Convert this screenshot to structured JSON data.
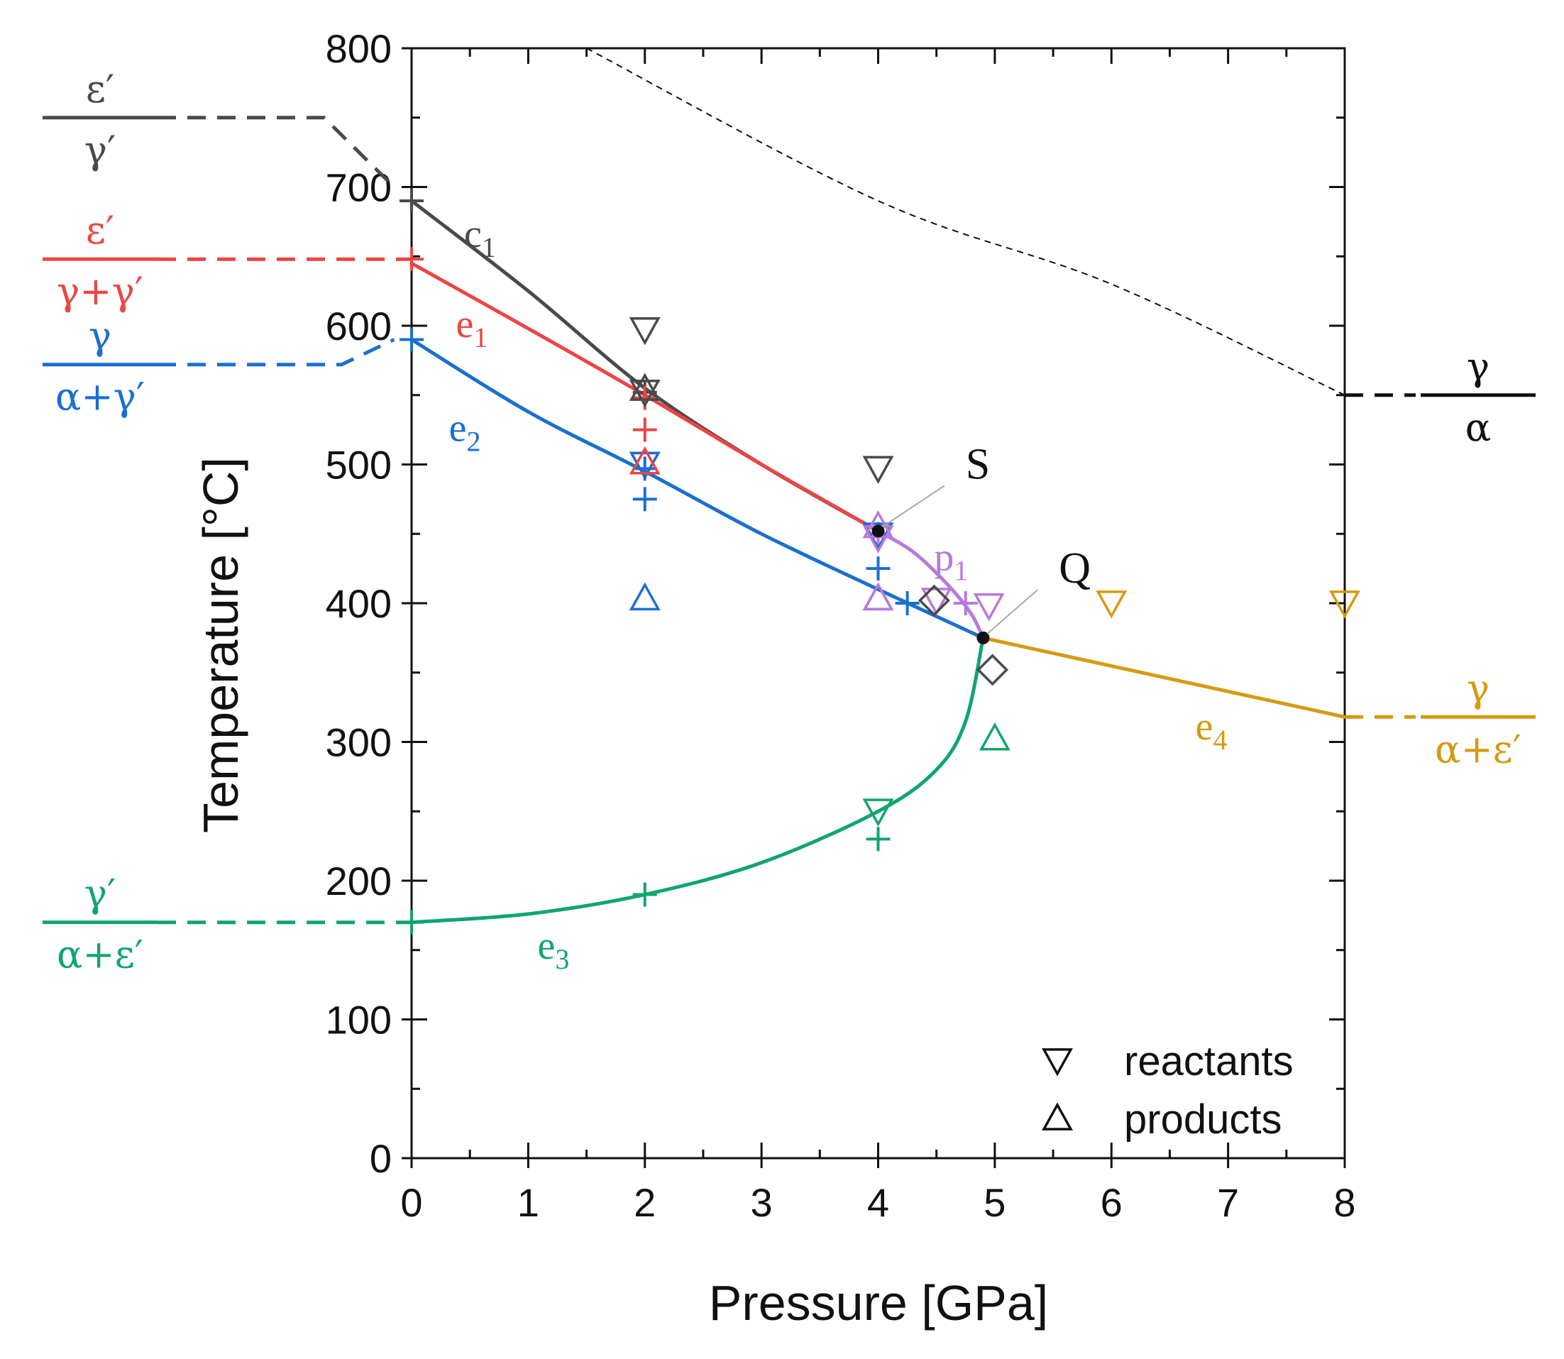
{
  "chart_data": {
    "type": "line",
    "xlabel": "Pressure [GPa]",
    "ylabel": "Temperature [°C]",
    "xlim": [
      0,
      8
    ],
    "ylim": [
      0,
      800
    ],
    "x_ticks": [
      "0",
      "1",
      "2",
      "3",
      "4",
      "5",
      "6",
      "7",
      "8"
    ],
    "y_ticks": [
      "0",
      "100",
      "200",
      "300",
      "400",
      "500",
      "600",
      "700",
      "800"
    ],
    "colors": {
      "c1": "#4a4a4a",
      "e1": "#ee4444",
      "e2": "#1a6fd0",
      "e3": "#10a56e",
      "e4": "#d49a12",
      "p1": "#b57bdc",
      "black": "#111111"
    },
    "series": [
      {
        "name": "c",
        "sub": "1",
        "color": "#4a4a4a",
        "x": [
          0,
          1,
          2,
          3,
          4
        ],
        "y": [
          690,
          625,
          555,
          500,
          452
        ]
      },
      {
        "name": "e",
        "sub": "1",
        "color": "#ee4444",
        "x": [
          0,
          1,
          2,
          3,
          4
        ],
        "y": [
          645,
          598,
          550,
          500,
          452
        ]
      },
      {
        "name": "e",
        "sub": "2",
        "color": "#1a6fd0",
        "x": [
          0,
          1,
          2,
          3,
          4,
          4.9
        ],
        "y": [
          590,
          538,
          495,
          450,
          410,
          375
        ]
      },
      {
        "name": "e",
        "sub": "3",
        "color": "#10a56e",
        "x": [
          0,
          1,
          2,
          3,
          4,
          4.5,
          4.75,
          4.9
        ],
        "y": [
          170,
          176,
          190,
          213,
          250,
          280,
          315,
          375
        ]
      },
      {
        "name": "e",
        "sub": "4",
        "color": "#d49a12",
        "x": [
          4.9,
          8
        ],
        "y": [
          375,
          318
        ]
      },
      {
        "name": "p",
        "sub": "1",
        "color": "#b57bdc",
        "x": [
          4,
          4.3,
          4.6,
          4.8,
          4.9
        ],
        "y": [
          452,
          437,
          413,
          392,
          375
        ]
      }
    ],
    "upper_dashed_line": {
      "x": [
        1.5,
        4,
        6,
        8
      ],
      "y": [
        800,
        690,
        630,
        550
      ]
    },
    "left_connectors": [
      {
        "color": "#4a4a4a",
        "x": [
          -2.1,
          -0.75,
          -0.15
        ],
        "y": [
          750,
          750,
          700
        ]
      },
      {
        "color": "#ee4444",
        "x": [
          -2.1,
          0
        ],
        "y": [
          648,
          648
        ]
      },
      {
        "color": "#1a6fd0",
        "x": [
          -2.1,
          -0.6,
          -0.15
        ],
        "y": [
          572,
          572,
          590
        ]
      },
      {
        "color": "#10a56e",
        "x": [
          -2.1,
          0
        ],
        "y": [
          170,
          170
        ]
      }
    ],
    "right_connectors": [
      {
        "color": "#111111",
        "x": [
          8,
          10.9
        ],
        "y": [
          550,
          550
        ]
      },
      {
        "color": "#d49a12",
        "x": [
          8,
          10.9
        ],
        "y": [
          318,
          318
        ]
      }
    ],
    "left_labels": [
      {
        "top": "ε′",
        "bottom": "γ′",
        "y": 750,
        "color": "#4a4a4a"
      },
      {
        "top": "ε′",
        "bottom": "γ+γ′",
        "y": 648,
        "color": "#ee4444"
      },
      {
        "top": "γ",
        "bottom": "α+γ′",
        "y": 572,
        "color": "#1a6fd0"
      },
      {
        "top": "γ′",
        "bottom": "α+ε′",
        "y": 170,
        "color": "#10a56e"
      }
    ],
    "right_labels": [
      {
        "top": "γ",
        "bottom": "α",
        "y": 550,
        "color": "#111111"
      },
      {
        "top": "γ",
        "bottom": "α+ε′",
        "y": 318,
        "color": "#d49a12"
      }
    ],
    "curve_labels": [
      {
        "name": "c",
        "sub": "1",
        "x": 0.45,
        "y": 665,
        "color": "#4a4a4a"
      },
      {
        "name": "e",
        "sub": "1",
        "x": 0.38,
        "y": 600,
        "color": "#ee4444"
      },
      {
        "name": "e",
        "sub": "2",
        "x": 0.32,
        "y": 525,
        "color": "#1a6fd0"
      },
      {
        "name": "e",
        "sub": "3",
        "x": 1.08,
        "y": 152,
        "color": "#10a56e"
      },
      {
        "name": "e",
        "sub": "4",
        "x": 6.72,
        "y": 310,
        "color": "#d49a12"
      },
      {
        "name": "p",
        "sub": "1",
        "x": 4.48,
        "y": 432,
        "color": "#b57bdc"
      }
    ],
    "invariant_points": [
      {
        "name": "S",
        "x": 4,
        "y": 452,
        "label_x": 4.75,
        "label_y": 500
      },
      {
        "name": "Q",
        "x": 4.9,
        "y": 375,
        "label_x": 5.55,
        "label_y": 425
      }
    ],
    "crosses": [
      {
        "x": 0,
        "y": 690,
        "color": "#4a4a4a"
      },
      {
        "x": 0,
        "y": 648,
        "color": "#ee4444"
      },
      {
        "x": 0,
        "y": 590,
        "color": "#1a6fd0"
      },
      {
        "x": 0,
        "y": 170,
        "color": "#10a56e"
      },
      {
        "x": 2,
        "y": 552,
        "color": "#4a4a4a"
      },
      {
        "x": 2,
        "y": 548,
        "color": "#ee4444"
      },
      {
        "x": 2,
        "y": 525,
        "color": "#ee4444"
      },
      {
        "x": 2,
        "y": 497,
        "color": "#1a6fd0"
      },
      {
        "x": 2,
        "y": 475,
        "color": "#1a6fd0"
      },
      {
        "x": 2,
        "y": 190,
        "color": "#10a56e"
      },
      {
        "x": 4,
        "y": 450,
        "color": "#b57bdc"
      },
      {
        "x": 4,
        "y": 425,
        "color": "#1a6fd0"
      },
      {
        "x": 4.25,
        "y": 400,
        "color": "#1a6fd0"
      },
      {
        "x": 4.75,
        "y": 400,
        "color": "#b57bdc"
      },
      {
        "x": 4,
        "y": 230,
        "color": "#10a56e"
      }
    ],
    "reactants": [
      {
        "x": 2,
        "y": 597,
        "color": "#4a4a4a"
      },
      {
        "x": 2,
        "y": 552,
        "color": "#4a4a4a"
      },
      {
        "x": 2,
        "y": 500,
        "color": "#ee4444"
      },
      {
        "x": 2,
        "y": 500,
        "color": "#1a6fd0"
      },
      {
        "x": 4,
        "y": 497,
        "color": "#4a4a4a"
      },
      {
        "x": 4,
        "y": 449,
        "color": "#1a6fd0"
      },
      {
        "x": 4,
        "y": 447,
        "color": "#b57bdc"
      },
      {
        "x": 4.5,
        "y": 402,
        "color": "#b57bdc"
      },
      {
        "x": 4.95,
        "y": 398,
        "color": "#b57bdc"
      },
      {
        "x": 4,
        "y": 250,
        "color": "#10a56e"
      },
      {
        "x": 6,
        "y": 400,
        "color": "#d49a12"
      },
      {
        "x": 8,
        "y": 400,
        "color": "#d49a12"
      }
    ],
    "products": [
      {
        "x": 2,
        "y": 555,
        "color": "#4a4a4a"
      },
      {
        "x": 2,
        "y": 502,
        "color": "#ee4444"
      },
      {
        "x": 2,
        "y": 404,
        "color": "#1a6fd0"
      },
      {
        "x": 4,
        "y": 456,
        "color": "#b57bdc"
      },
      {
        "x": 4,
        "y": 404,
        "color": "#1a6fd0"
      },
      {
        "x": 4,
        "y": 404,
        "color": "#b57bdc"
      },
      {
        "x": 5,
        "y": 303,
        "color": "#10a56e"
      }
    ],
    "diamonds": [
      {
        "x": 4.48,
        "y": 402,
        "color": "#4a4a4a"
      },
      {
        "x": 4.98,
        "y": 352,
        "color": "#4a4a4a"
      }
    ],
    "legend": {
      "position": "bottom-right",
      "items": [
        {
          "marker": "down-triangle",
          "label": "reactants"
        },
        {
          "marker": "up-triangle",
          "label": "products"
        }
      ]
    }
  }
}
